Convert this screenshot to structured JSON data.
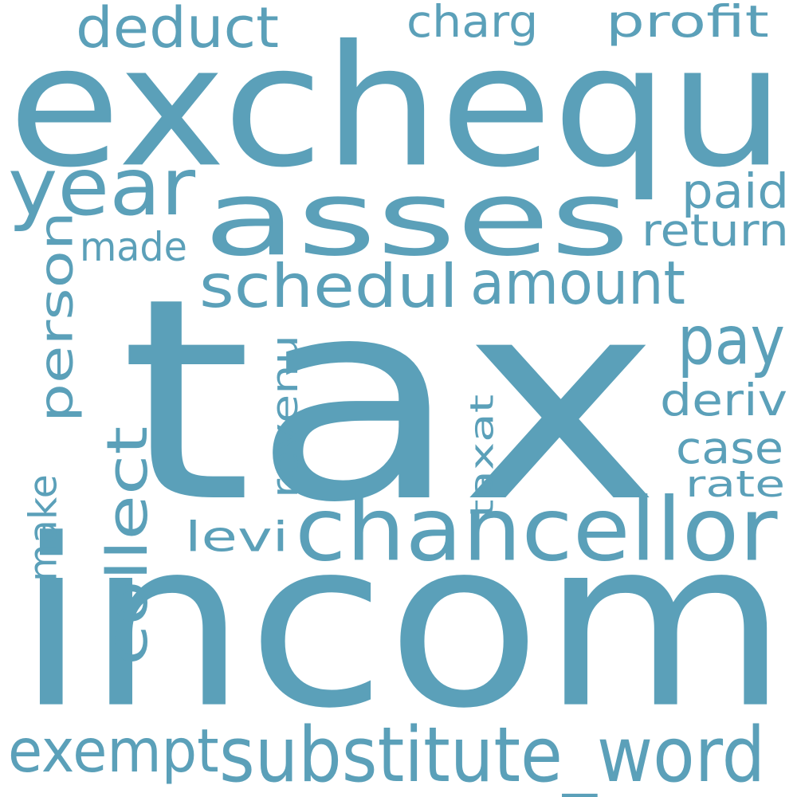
{
  "word_color": "#5BA0B9",
  "background_color": "#ffffff",
  "words": [
    {
      "text": "tax"
    },
    {
      "text": "incom"
    },
    {
      "text": "exchequ"
    },
    {
      "text": "asses"
    },
    {
      "text": "chancellor"
    },
    {
      "text": "substitute_word"
    },
    {
      "text": "year"
    },
    {
      "text": "schedul"
    },
    {
      "text": "amount"
    },
    {
      "text": "deduct"
    },
    {
      "text": "exempt"
    },
    {
      "text": "collect"
    },
    {
      "text": "person"
    },
    {
      "text": "pay"
    },
    {
      "text": "profit"
    },
    {
      "text": "charg"
    },
    {
      "text": "paid"
    },
    {
      "text": "return"
    },
    {
      "text": "made"
    },
    {
      "text": "revenu"
    },
    {
      "text": "deriv"
    },
    {
      "text": "case"
    },
    {
      "text": "rate"
    },
    {
      "text": "taxat"
    },
    {
      "text": "levi"
    },
    {
      "text": "make"
    }
  ]
}
